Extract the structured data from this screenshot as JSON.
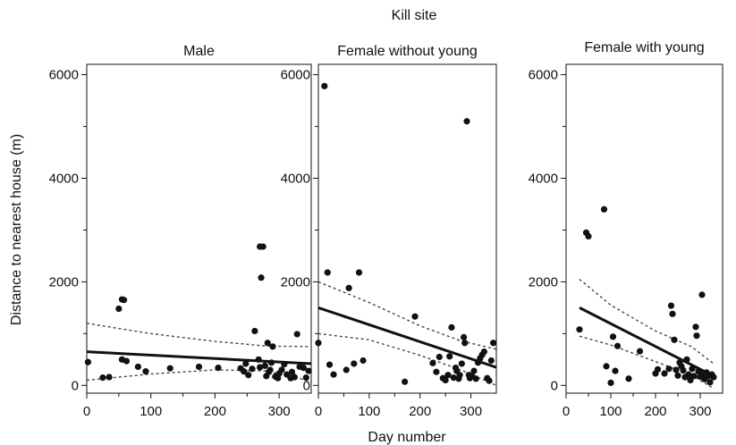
{
  "figure": {
    "title": "Kill site",
    "xlabel": "Day number",
    "ylabel": "Distance to nearest house (m)"
  },
  "chart_data": [
    {
      "type": "scatter",
      "title": "Male",
      "xlim": [
        0,
        350
      ],
      "ylim": [
        -150,
        6200
      ],
      "xticks": [
        0,
        100,
        200,
        300
      ],
      "yticks": [
        0,
        2000,
        4000,
        6000
      ],
      "ytick_labels_shown": true,
      "points": [
        [
          2,
          450
        ],
        [
          25,
          150
        ],
        [
          35,
          160
        ],
        [
          50,
          1480
        ],
        [
          55,
          1660
        ],
        [
          58,
          1650
        ],
        [
          55,
          500
        ],
        [
          62,
          470
        ],
        [
          80,
          360
        ],
        [
          92,
          270
        ],
        [
          130,
          330
        ],
        [
          175,
          360
        ],
        [
          205,
          340
        ],
        [
          240,
          330
        ],
        [
          245,
          270
        ],
        [
          248,
          420
        ],
        [
          252,
          200
        ],
        [
          258,
          320
        ],
        [
          262,
          1050
        ],
        [
          268,
          500
        ],
        [
          270,
          2680
        ],
        [
          275,
          2680
        ],
        [
          272,
          2080
        ],
        [
          278,
          380
        ],
        [
          282,
          820
        ],
        [
          284,
          260
        ],
        [
          288,
          440
        ],
        [
          290,
          750
        ],
        [
          294,
          170
        ],
        [
          298,
          140
        ],
        [
          300,
          230
        ],
        [
          304,
          300
        ],
        [
          308,
          410
        ],
        [
          312,
          210
        ],
        [
          318,
          140
        ],
        [
          320,
          260
        ],
        [
          324,
          160
        ],
        [
          328,
          990
        ],
        [
          332,
          360
        ],
        [
          338,
          340
        ],
        [
          342,
          150
        ],
        [
          346,
          280
        ],
        [
          270,
          350
        ],
        [
          280,
          180
        ],
        [
          286,
          300
        ]
      ],
      "regression": {
        "x": [
          0,
          350
        ],
        "y": [
          650,
          420
        ]
      },
      "ci_upper": {
        "x": [
          0,
          100,
          200,
          280,
          350
        ],
        "y": [
          1200,
          1000,
          850,
          760,
          750
        ]
      },
      "ci_lower": {
        "x": [
          0,
          100,
          200,
          280,
          350
        ],
        "y": [
          100,
          220,
          300,
          280,
          80
        ]
      }
    },
    {
      "type": "scatter",
      "title": "Female without young",
      "xlim": [
        0,
        350
      ],
      "ylim": [
        -150,
        6200
      ],
      "xticks": [
        0,
        100,
        200,
        300
      ],
      "yticks": [
        0,
        2000,
        4000,
        6000
      ],
      "ytick_labels_shown": true,
      "points": [
        [
          12,
          5780
        ],
        [
          18,
          2180
        ],
        [
          22,
          400
        ],
        [
          30,
          210
        ],
        [
          55,
          300
        ],
        [
          60,
          1880
        ],
        [
          70,
          420
        ],
        [
          80,
          2180
        ],
        [
          88,
          480
        ],
        [
          170,
          70
        ],
        [
          190,
          1330
        ],
        [
          225,
          430
        ],
        [
          232,
          260
        ],
        [
          238,
          550
        ],
        [
          245,
          140
        ],
        [
          250,
          100
        ],
        [
          255,
          200
        ],
        [
          258,
          560
        ],
        [
          262,
          1120
        ],
        [
          266,
          150
        ],
        [
          270,
          340
        ],
        [
          272,
          280
        ],
        [
          276,
          130
        ],
        [
          278,
          200
        ],
        [
          282,
          420
        ],
        [
          286,
          930
        ],
        [
          288,
          820
        ],
        [
          292,
          5100
        ],
        [
          296,
          200
        ],
        [
          298,
          140
        ],
        [
          302,
          180
        ],
        [
          306,
          280
        ],
        [
          310,
          130
        ],
        [
          314,
          440
        ],
        [
          318,
          520
        ],
        [
          322,
          590
        ],
        [
          326,
          650
        ],
        [
          332,
          140
        ],
        [
          336,
          90
        ],
        [
          340,
          480
        ],
        [
          344,
          820
        ],
        [
          0,
          820
        ]
      ],
      "regression": {
        "x": [
          0,
          350
        ],
        "y": [
          1500,
          350
        ]
      },
      "ci_upper": {
        "x": [
          0,
          100,
          200,
          280,
          350
        ],
        "y": [
          2000,
          1600,
          1150,
          860,
          700
        ]
      },
      "ci_lower": {
        "x": [
          0,
          100,
          200,
          280,
          350
        ],
        "y": [
          1000,
          880,
          580,
          300,
          0
        ]
      }
    },
    {
      "type": "scatter",
      "title": "Female with young",
      "xlim": [
        0,
        350
      ],
      "ylim": [
        -150,
        6200
      ],
      "xticks": [
        0,
        100,
        200,
        300
      ],
      "yticks": [
        0,
        2000,
        4000,
        6000
      ],
      "ytick_labels_shown": true,
      "points": [
        [
          30,
          1080
        ],
        [
          45,
          2950
        ],
        [
          50,
          2880
        ],
        [
          85,
          3400
        ],
        [
          90,
          370
        ],
        [
          100,
          50
        ],
        [
          105,
          940
        ],
        [
          110,
          280
        ],
        [
          115,
          760
        ],
        [
          140,
          130
        ],
        [
          165,
          660
        ],
        [
          200,
          230
        ],
        [
          205,
          310
        ],
        [
          220,
          230
        ],
        [
          230,
          320
        ],
        [
          235,
          1540
        ],
        [
          238,
          1380
        ],
        [
          242,
          880
        ],
        [
          246,
          300
        ],
        [
          250,
          190
        ],
        [
          254,
          440
        ],
        [
          258,
          370
        ],
        [
          262,
          290
        ],
        [
          266,
          160
        ],
        [
          270,
          500
        ],
        [
          274,
          210
        ],
        [
          278,
          100
        ],
        [
          282,
          320
        ],
        [
          286,
          180
        ],
        [
          290,
          1130
        ],
        [
          292,
          960
        ],
        [
          296,
          270
        ],
        [
          300,
          170
        ],
        [
          304,
          1750
        ],
        [
          306,
          230
        ],
        [
          310,
          120
        ],
        [
          314,
          250
        ],
        [
          318,
          180
        ],
        [
          322,
          60
        ],
        [
          326,
          210
        ],
        [
          330,
          160
        ]
      ],
      "regression": {
        "x": [
          30,
          330
        ],
        "y": [
          1500,
          180
        ]
      },
      "ci_upper": {
        "x": [
          30,
          100,
          200,
          280,
          330
        ],
        "y": [
          2050,
          1550,
          1050,
          750,
          420
        ]
      },
      "ci_lower": {
        "x": [
          30,
          100,
          200,
          280,
          330
        ],
        "y": [
          950,
          780,
          460,
          200,
          -60
        ]
      }
    }
  ]
}
